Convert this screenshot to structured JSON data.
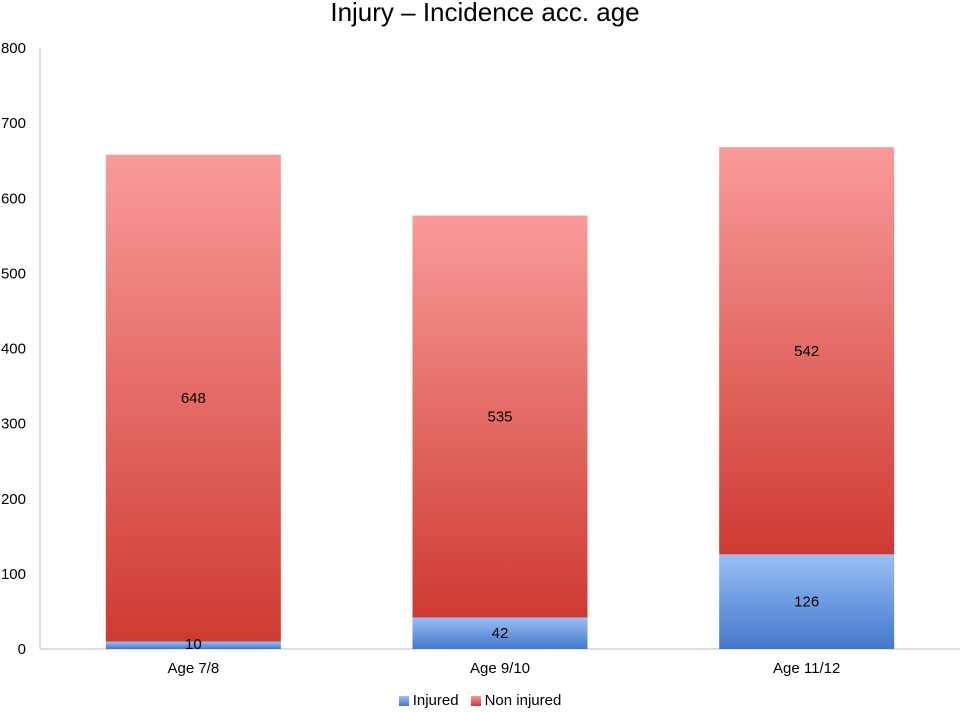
{
  "chart_data": {
    "type": "bar",
    "stacked": true,
    "title": "Injury – Incidence acc. age",
    "xlabel": "",
    "ylabel": "",
    "categories": [
      "Age 7/8",
      "Age 9/10",
      "Age 11/12"
    ],
    "series": [
      {
        "name": "Injured",
        "values": [
          10,
          42,
          126
        ],
        "color_top": "#9bbff5",
        "color_bottom": "#4178cc"
      },
      {
        "name": "Non injured",
        "values": [
          648,
          535,
          542
        ],
        "color_top": "#f99b99",
        "color_bottom": "#ce3a32"
      }
    ],
    "ylim": [
      0,
      800
    ],
    "yticks": [
      "0",
      "100",
      "200",
      "300",
      "400",
      "500",
      "600",
      "700",
      "800"
    ],
    "grid": false,
    "legend_position": "bottom"
  }
}
